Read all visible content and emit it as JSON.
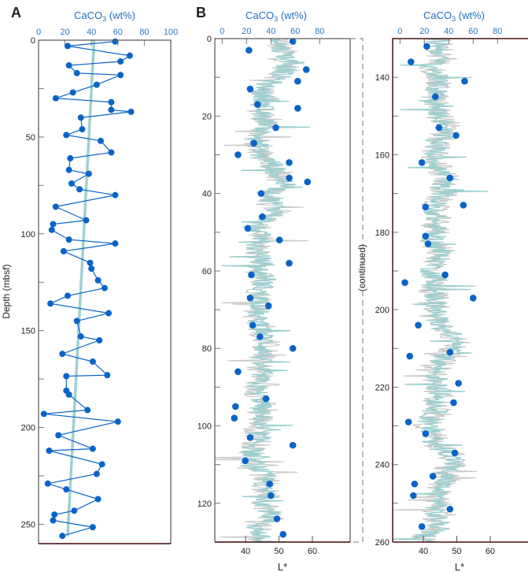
{
  "colors": {
    "caco3": "#0a64c8",
    "caco3_axis_text": "#2a78c0",
    "trend": "#9fd0d0",
    "lstar_teal": "#9ccfcf",
    "lstar_gray": "#c8c8c8",
    "frame": "#555555",
    "frame_bottom": "#4a1010"
  },
  "chart_data": [
    {
      "panel_label": "A",
      "type": "line",
      "title": "",
      "xlabel_top": "CaCO3 (wt%)",
      "xlabel_top_main": "CaCO",
      "xlabel_top_sub": "3",
      "xlabel_top_rest": " (wt%)",
      "ylabel": "Depth (mbsf)",
      "xlim": [
        0,
        100
      ],
      "ylim": [
        0,
        260
      ],
      "x_ticks": [
        "0",
        "20",
        "40",
        "60",
        "80",
        "100"
      ],
      "y_ticks": [
        "0",
        "50",
        "100",
        "150",
        "200",
        "250"
      ],
      "series": [
        {
          "name": "CaCO3",
          "depth": [
            0.7,
            3,
            8,
            11,
            13,
            17,
            18,
            23,
            27,
            30,
            32,
            36,
            37,
            40,
            46,
            49,
            52,
            58,
            61,
            67,
            69,
            74,
            77,
            80,
            86,
            93,
            95,
            98,
            103,
            105,
            109,
            115,
            118,
            124,
            128,
            132,
            136,
            141,
            145,
            153,
            155,
            162,
            166,
            173,
            173.5,
            181,
            183,
            191,
            193,
            197,
            204,
            211,
            212,
            219,
            224,
            229,
            232,
            237,
            243,
            245,
            248,
            251.5,
            256
          ],
          "values": [
            58,
            22,
            69,
            62,
            23,
            29,
            62,
            44,
            26,
            13,
            55,
            55,
            70,
            32,
            33,
            21,
            47,
            55,
            24,
            23,
            38,
            25,
            31,
            58,
            13,
            36,
            11,
            10,
            23,
            58,
            19,
            39,
            40,
            45,
            50,
            22,
            9,
            53,
            29,
            32,
            46,
            18,
            41,
            52,
            21,
            21,
            23,
            37,
            4,
            60,
            15,
            41,
            8,
            48,
            44,
            7,
            21,
            45,
            27,
            12,
            11,
            41,
            18
          ]
        },
        {
          "name": "trend",
          "depth": [
            0,
            256
          ],
          "values": [
            42,
            22
          ]
        }
      ]
    },
    {
      "panel_label": "B",
      "type": "line",
      "xlabel_top": "CaCO3 (wt%)",
      "xlabel_top_main": "CaCO",
      "xlabel_top_sub": "3",
      "xlabel_top_rest": " (wt%)",
      "xlabel_bottom": "L*",
      "ylabel_right_panel": "(continued)",
      "caco3_ticks": [
        "0",
        "20",
        "40",
        "60",
        "80"
      ],
      "lstar_ticks": [
        "40",
        "50",
        "60"
      ],
      "caco3_xlim": [
        -6,
        105
      ],
      "lstar_xlim": [
        30.8,
        71.3
      ],
      "panels": [
        {
          "name": "upper",
          "ylim": [
            0,
            130
          ],
          "y_ticks": [
            "0",
            "20",
            "40",
            "60",
            "80",
            "100",
            "120"
          ]
        },
        {
          "name": "lower",
          "ylim": [
            130,
            260
          ],
          "y_ticks": [
            "140",
            "160",
            "180",
            "200",
            "220",
            "240",
            "260"
          ]
        }
      ],
      "lstar_profile": {
        "depth_step_m": 2,
        "mean_values": [
          51,
          50,
          52,
          53,
          52,
          50,
          46,
          45,
          46,
          45,
          44,
          47,
          45,
          43,
          44,
          44,
          48,
          49,
          50,
          52,
          47,
          48,
          50,
          48,
          43,
          44,
          45,
          43,
          44,
          45,
          44,
          46,
          45,
          44,
          45,
          44,
          43,
          45,
          45,
          46,
          46,
          45,
          44,
          45,
          44,
          43,
          44,
          45,
          44,
          45,
          43,
          44,
          44,
          42,
          42,
          43,
          45,
          46,
          45,
          47,
          46,
          47,
          48,
          43,
          44,
          44,
          45,
          45,
          44,
          43,
          44,
          44,
          44,
          43,
          44,
          45,
          47,
          46,
          45,
          44,
          43,
          44,
          45,
          47,
          45,
          46,
          44,
          43,
          44,
          43,
          44,
          43,
          44,
          45,
          44,
          42,
          44,
          43,
          43,
          44,
          44,
          43,
          46,
          48,
          50,
          49,
          46,
          45,
          44,
          44,
          44,
          45,
          44,
          44,
          42,
          41,
          44,
          43,
          46,
          49,
          49,
          46,
          47,
          45,
          44,
          45,
          43,
          44,
          45,
          41,
          40
        ]
      }
    }
  ]
}
